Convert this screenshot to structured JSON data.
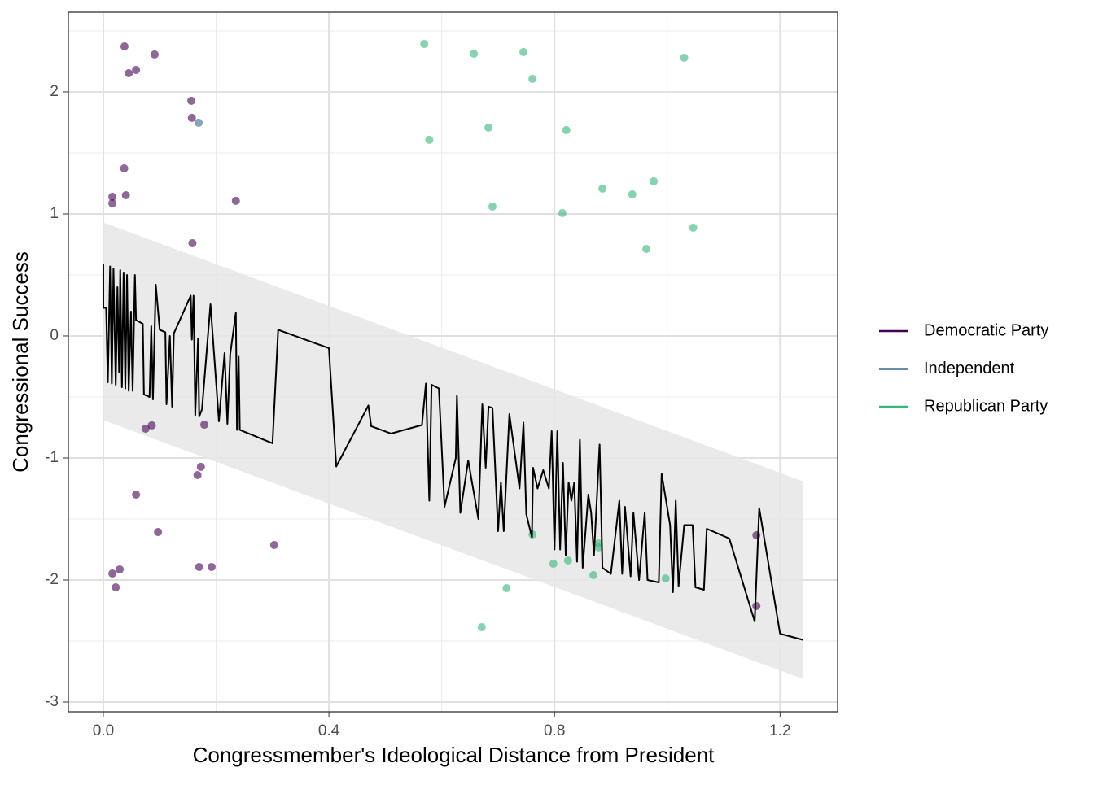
{
  "chart_data": {
    "type": "scatter",
    "x_label": "Congressmember's Ideological Distance from President",
    "y_label": "Congressional Success",
    "xlim": [
      -0.062,
      1.302
    ],
    "ylim": [
      -3.08,
      2.653
    ],
    "xticks": [
      {
        "value": 0,
        "label": "0.0"
      },
      0.4,
      0.8,
      1.2
    ],
    "yticks": [
      -3,
      -2,
      -1,
      0,
      1,
      2
    ],
    "x_minor_ticks": [
      0.2,
      0.6,
      1.0
    ],
    "y_minor_ticks": [
      -2.5,
      -1.5,
      -0.5,
      0.5,
      1.5,
      2.5
    ],
    "grid": true,
    "legend_position": "right",
    "series": [
      {
        "name": "Democratic Party",
        "color": "#440154",
        "x": [
          0.0375,
          0.091,
          0.045,
          0.058,
          0.156,
          0.157,
          0.037,
          0.016,
          0.016,
          0.04,
          0.235,
          0.158,
          0.086,
          0.075,
          0.179,
          0.173,
          0.167,
          0.058,
          0.097,
          0.303,
          0.17,
          0.192,
          0.029,
          0.016,
          0.022,
          1.158,
          1.158
        ],
        "values": [
          2.373,
          2.307,
          2.153,
          2.18,
          1.927,
          1.787,
          1.373,
          1.14,
          1.087,
          1.153,
          1.107,
          0.76,
          -0.733,
          -0.76,
          -0.727,
          -1.073,
          -1.14,
          -1.3,
          -1.607,
          -1.713,
          -1.893,
          -1.893,
          -1.913,
          -1.947,
          -2.06,
          -2.213,
          -1.633
        ]
      },
      {
        "name": "Independent",
        "color": "#31688e",
        "x": [
          0.169
        ],
        "values": [
          1.747
        ]
      },
      {
        "name": "Republican Party",
        "color": "#35b779",
        "x": [
          0.569,
          0.657,
          0.745,
          0.761,
          1.03,
          0.683,
          0.578,
          0.821,
          0.885,
          0.938,
          0.976,
          0.69,
          0.814,
          1.046,
          0.963,
          0.761,
          0.798,
          0.824,
          0.878,
          0.878,
          0.869,
          0.997,
          0.715,
          0.671
        ],
        "values": [
          2.393,
          2.313,
          2.327,
          2.107,
          2.28,
          1.707,
          1.607,
          1.687,
          1.207,
          1.16,
          1.267,
          1.06,
          1.007,
          0.887,
          0.713,
          -1.627,
          -1.867,
          -1.84,
          -1.7,
          -1.733,
          -1.96,
          -1.987,
          -2.067,
          -2.387
        ]
      }
    ],
    "ribbon": {
      "color": "#e6e6e6",
      "x": [
        0,
        1.24
      ],
      "upper": [
        0.93,
        -1.19
      ],
      "lower": [
        -0.69,
        -2.81
      ]
    },
    "line": {
      "color": "#000000",
      "x": [
        0,
        0,
        0.005,
        0.008,
        0.012,
        0.015,
        0.018,
        0.022,
        0.025,
        0.028,
        0.03,
        0.033,
        0.036,
        0.039,
        0.042,
        0.045,
        0.049,
        0.052,
        0.056,
        0.058,
        0.07,
        0.072,
        0.082,
        0.085,
        0.088,
        0.093,
        0.1,
        0.11,
        0.112,
        0.118,
        0.122,
        0.125,
        0.155,
        0.157,
        0.16,
        0.163,
        0.168,
        0.17,
        0.175,
        0.19,
        0.205,
        0.215,
        0.22,
        0.225,
        0.235,
        0.237,
        0.24,
        0.242,
        0.3,
        0.31,
        0.4,
        0.413,
        0.47,
        0.475,
        0.51,
        0.565,
        0.572,
        0.578,
        0.582,
        0.595,
        0.605,
        0.625,
        0.627,
        0.633,
        0.647,
        0.665,
        0.672,
        0.678,
        0.683,
        0.69,
        0.7,
        0.705,
        0.71,
        0.72,
        0.738,
        0.745,
        0.75,
        0.76,
        0.762,
        0.77,
        0.78,
        0.79,
        0.795,
        0.8,
        0.805,
        0.81,
        0.815,
        0.82,
        0.825,
        0.83,
        0.835,
        0.84,
        0.845,
        0.85,
        0.86,
        0.865,
        0.87,
        0.88,
        0.885,
        0.9,
        0.915,
        0.92,
        0.925,
        0.935,
        0.94,
        0.95,
        0.96,
        0.965,
        0.985,
        0.99,
        1.005,
        1.01,
        1.015,
        1.02,
        1.03,
        1.045,
        1.05,
        1.065,
        1.07,
        1.11,
        1.155,
        1.163,
        1.2,
        1.24
      ],
      "y": [
        0.59,
        0.23,
        0.23,
        -0.38,
        0.57,
        -0.39,
        0.55,
        -0.4,
        0.4,
        -0.3,
        0.54,
        -0.42,
        0.52,
        -0.43,
        0.5,
        -0.45,
        0.2,
        -0.45,
        0.5,
        0.13,
        0.1,
        -0.48,
        -0.5,
        0.08,
        -0.52,
        0.42,
        0.05,
        0.03,
        -0.56,
        0.0,
        -0.58,
        0.02,
        0.33,
        -0.03,
        0.33,
        -0.65,
        -0.02,
        -0.66,
        -0.6,
        0.26,
        -0.7,
        -0.14,
        -0.72,
        -0.15,
        0.19,
        -0.77,
        -0.17,
        -0.77,
        -0.88,
        0.05,
        -0.1,
        -1.07,
        -0.57,
        -0.74,
        -0.8,
        -0.73,
        -0.39,
        -1.35,
        -0.4,
        -0.43,
        -1.4,
        -1.0,
        -0.49,
        -1.45,
        -1.02,
        -1.5,
        -0.56,
        -1.08,
        -0.58,
        -0.59,
        -1.6,
        -1.2,
        -1.6,
        -0.64,
        -1.25,
        -0.71,
        -1.46,
        -1.65,
        -1.08,
        -1.25,
        -1.1,
        -1.25,
        -0.78,
        -1.75,
        -0.78,
        -1.75,
        -1.04,
        -1.8,
        -1.2,
        -1.35,
        -1.2,
        -1.85,
        -0.85,
        -1.9,
        -1.3,
        -1.45,
        -1.8,
        -0.89,
        -1.9,
        -1.95,
        -1.35,
        -1.95,
        -1.4,
        -1.97,
        -1.45,
        -2.0,
        -1.45,
        -2.0,
        -2.02,
        -1.13,
        -1.55,
        -2.1,
        -1.35,
        -2.05,
        -1.55,
        -1.55,
        -2.06,
        -2.08,
        -1.58,
        -1.66,
        -2.34,
        -1.41,
        -2.44,
        -2.49
      ]
    }
  }
}
